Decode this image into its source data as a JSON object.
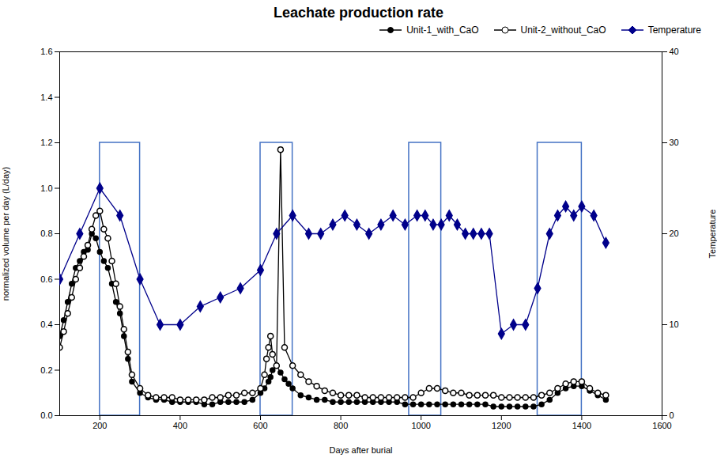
{
  "chart_data": {
    "type": "line",
    "title": "Leachate production rate",
    "x_label": "Days after burial",
    "y_label": "normalized volume per day (L/day)",
    "y2_label": "Temperature",
    "xlim": [
      100,
      1600
    ],
    "xticks": [
      200,
      400,
      600,
      800,
      1000,
      1200,
      1400,
      1600
    ],
    "ylim": [
      0.0,
      1.6
    ],
    "yticks": [
      {
        "value": 0.0,
        "label": "0.0"
      },
      0.2,
      0.4,
      0.6,
      0.8,
      {
        "value": 1.0,
        "label": "1.0"
      },
      1.2,
      1.4,
      1.6
    ],
    "y2lim": [
      0,
      40
    ],
    "y2ticks": [
      0,
      10,
      20,
      30,
      40
    ],
    "grid": false,
    "legend": "upper right",
    "series": [
      {
        "name": "Unit-1_with_CaO",
        "color": "#000000",
        "marker": "circle",
        "x": [
          100,
          110,
          120,
          130,
          140,
          150,
          160,
          170,
          180,
          190,
          200,
          210,
          220,
          230,
          240,
          250,
          260,
          270,
          280,
          300,
          320,
          340,
          360,
          380,
          400,
          420,
          440,
          460,
          480,
          500,
          520,
          540,
          560,
          580,
          600,
          610,
          620,
          625,
          630,
          640,
          650,
          660,
          670,
          680,
          700,
          720,
          740,
          760,
          780,
          800,
          820,
          840,
          860,
          880,
          900,
          920,
          940,
          960,
          980,
          1000,
          1020,
          1040,
          1060,
          1080,
          1100,
          1120,
          1140,
          1160,
          1180,
          1200,
          1220,
          1240,
          1260,
          1280,
          1300,
          1320,
          1340,
          1360,
          1380,
          1400,
          1420,
          1440,
          1460
        ],
        "values": [
          0.35,
          0.42,
          0.5,
          0.58,
          0.65,
          0.68,
          0.72,
          0.73,
          0.8,
          0.78,
          0.72,
          0.68,
          0.65,
          0.58,
          0.5,
          0.45,
          0.35,
          0.25,
          0.15,
          0.1,
          0.08,
          0.07,
          0.07,
          0.06,
          0.06,
          0.06,
          0.06,
          0.05,
          0.05,
          0.06,
          0.06,
          0.06,
          0.06,
          0.07,
          0.1,
          0.12,
          0.15,
          0.17,
          0.2,
          0.22,
          0.19,
          0.16,
          0.14,
          0.12,
          0.09,
          0.08,
          0.07,
          0.07,
          0.06,
          0.06,
          0.06,
          0.06,
          0.06,
          0.06,
          0.06,
          0.06,
          0.06,
          0.05,
          0.05,
          0.05,
          0.05,
          0.05,
          0.05,
          0.05,
          0.05,
          0.05,
          0.05,
          0.05,
          0.04,
          0.04,
          0.04,
          0.04,
          0.04,
          0.04,
          0.05,
          0.07,
          0.1,
          0.12,
          0.13,
          0.13,
          0.11,
          0.09,
          0.07
        ]
      },
      {
        "name": "Unit-2_without_CaO",
        "color": "#000000",
        "marker": "open_circle",
        "x": [
          100,
          110,
          120,
          130,
          140,
          150,
          160,
          170,
          180,
          190,
          200,
          210,
          220,
          230,
          240,
          250,
          260,
          270,
          280,
          300,
          320,
          340,
          360,
          380,
          400,
          420,
          440,
          460,
          480,
          500,
          520,
          540,
          560,
          580,
          600,
          610,
          615,
          620,
          625,
          630,
          640,
          650,
          660,
          680,
          700,
          720,
          740,
          760,
          780,
          800,
          820,
          840,
          860,
          880,
          900,
          920,
          940,
          960,
          980,
          1000,
          1020,
          1040,
          1060,
          1080,
          1100,
          1120,
          1140,
          1160,
          1180,
          1200,
          1220,
          1240,
          1260,
          1280,
          1300,
          1320,
          1340,
          1360,
          1380,
          1400,
          1420,
          1440,
          1460
        ],
        "values": [
          0.3,
          0.37,
          0.45,
          0.52,
          0.6,
          0.65,
          0.7,
          0.75,
          0.82,
          0.88,
          0.9,
          0.82,
          0.78,
          0.68,
          0.58,
          0.48,
          0.38,
          0.28,
          0.18,
          0.12,
          0.09,
          0.08,
          0.08,
          0.08,
          0.07,
          0.07,
          0.07,
          0.07,
          0.08,
          0.08,
          0.09,
          0.09,
          0.1,
          0.1,
          0.12,
          0.18,
          0.25,
          0.3,
          0.35,
          0.27,
          0.22,
          1.17,
          0.3,
          0.22,
          0.18,
          0.15,
          0.13,
          0.11,
          0.1,
          0.09,
          0.09,
          0.09,
          0.08,
          0.08,
          0.08,
          0.08,
          0.08,
          0.08,
          0.08,
          0.1,
          0.12,
          0.12,
          0.11,
          0.1,
          0.1,
          0.09,
          0.09,
          0.09,
          0.09,
          0.08,
          0.08,
          0.08,
          0.08,
          0.08,
          0.09,
          0.1,
          0.12,
          0.14,
          0.15,
          0.15,
          0.12,
          0.1,
          0.09
        ]
      },
      {
        "name": "Temperature",
        "color": "#00008B",
        "marker": "diamond",
        "axis": "y2",
        "x": [
          100,
          150,
          200,
          250,
          300,
          350,
          400,
          450,
          500,
          550,
          600,
          640,
          680,
          720,
          750,
          780,
          810,
          840,
          870,
          900,
          930,
          960,
          990,
          1010,
          1030,
          1050,
          1070,
          1090,
          1110,
          1130,
          1150,
          1170,
          1200,
          1230,
          1260,
          1290,
          1320,
          1340,
          1360,
          1380,
          1400,
          1430,
          1460
        ],
        "values": [
          15,
          20,
          25,
          22,
          15,
          10,
          10,
          12,
          13,
          14,
          16,
          20,
          22,
          20,
          20,
          21,
          22,
          21,
          20,
          21,
          22,
          21,
          22,
          22,
          21,
          21,
          22,
          21,
          20,
          20,
          20,
          20,
          9,
          10,
          10,
          14,
          20,
          22,
          23,
          22,
          23,
          22,
          19
        ]
      }
    ],
    "boxes": {
      "color": "#4472C4",
      "values": [
        {
          "x1": 200,
          "x2": 300,
          "y1": 0.0,
          "y2": 1.2
        },
        {
          "x1": 600,
          "x2": 680,
          "y1": 0.0,
          "y2": 1.2
        },
        {
          "x1": 970,
          "x2": 1050,
          "y1": 0.0,
          "y2": 1.2
        },
        {
          "x1": 1290,
          "x2": 1400,
          "y1": 0.0,
          "y2": 1.2
        }
      ]
    }
  }
}
